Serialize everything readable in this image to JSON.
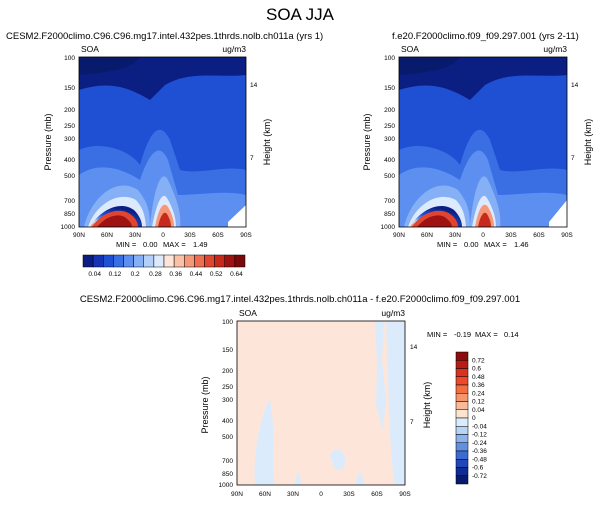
{
  "page_title": "SOA JJA",
  "chart_data": [
    {
      "type": "contour",
      "panel": "top-left",
      "title": "CESM2.F2000climo.C96.C96.mg17.intel.432pes.1thrds.nolb.ch011a (yrs 1)",
      "variable": "SOA",
      "units": "ug/m3",
      "ylabel": "Pressure (mb)",
      "ylabel_right": "Height (km)",
      "x_ticks": [
        "90N",
        "60N",
        "30N",
        "0",
        "30S",
        "60S",
        "90S"
      ],
      "y_ticks": [
        "100",
        "150",
        "200",
        "250",
        "300",
        "400",
        "500",
        "700",
        "850",
        "1000"
      ],
      "y_ticks_right": [
        "14",
        "7"
      ],
      "ylim": [
        1000,
        100
      ],
      "min_label": "MIN = ",
      "min": "0.00",
      "max_label": "MAX = ",
      "max": "1.49"
    },
    {
      "type": "contour",
      "panel": "top-right",
      "title": "f.e20.F2000climo.f09_f09.297.001 (yrs 2-11)",
      "variable": "SOA",
      "units": "ug/m3",
      "ylabel": "Pressure (mb)",
      "ylabel_right": "Height (km)",
      "x_ticks": [
        "90N",
        "60N",
        "30N",
        "0",
        "30S",
        "60S",
        "90S"
      ],
      "y_ticks": [
        "100",
        "150",
        "200",
        "250",
        "300",
        "400",
        "500",
        "700",
        "850",
        "1000"
      ],
      "y_ticks_right": [
        "14",
        "7"
      ],
      "ylim": [
        1000,
        100
      ],
      "min_label": "MIN = ",
      "min": "0.00",
      "max_label": "MAX = ",
      "max": "1.46"
    },
    {
      "type": "contour",
      "panel": "bottom-difference",
      "title": "CESM2.F2000climo.C96.C96.mg17.intel.432pes.1thrds.nolb.ch011a - f.e20.F2000climo.f09_f09.297.001",
      "variable": "SOA",
      "units": "ug/m3",
      "ylabel": "Pressure (mb)",
      "ylabel_right": "Height (km)",
      "x_ticks": [
        "90N",
        "60N",
        "30N",
        "0",
        "30S",
        "60S",
        "90S"
      ],
      "y_ticks": [
        "100",
        "150",
        "200",
        "250",
        "300",
        "400",
        "500",
        "700",
        "850",
        "1000"
      ],
      "y_ticks_right": [
        "14",
        "7"
      ],
      "ylim": [
        1000,
        100
      ],
      "min_label": "MIN = ",
      "min": "-0.19",
      "max_label": "MAX = ",
      "max": "0.14"
    }
  ],
  "colorbar_top": {
    "orientation": "horizontal",
    "labels": [
      "0.04",
      "0.12",
      "0.2",
      "0.28",
      "0.36",
      "0.44",
      "0.52",
      "0.64"
    ],
    "colors": [
      "#0b1e82",
      "#1633b5",
      "#1f4fd2",
      "#3a6fe4",
      "#5c8fef",
      "#86b0f5",
      "#b3d0fb",
      "#dde9fd",
      "#fde6d9",
      "#f9c2a7",
      "#f5987a",
      "#ee6e50",
      "#e04530",
      "#c52a1d",
      "#9e1212",
      "#7a0a0a"
    ]
  },
  "colorbar_bottom": {
    "orientation": "vertical",
    "labels": [
      "0.72",
      "0.6",
      "0.48",
      "0.36",
      "0.24",
      "0.12",
      "0.04",
      "0",
      "-0.04",
      "-0.12",
      "-0.24",
      "-0.36",
      "-0.48",
      "-0.6",
      "-0.72"
    ],
    "colors": [
      "#8b0d0d",
      "#b81c17",
      "#d9331f",
      "#ec4a2a",
      "#f2703f",
      "#f6966a",
      "#f9bb97",
      "#fde4cf",
      "#dcebfb",
      "#b7d3f6",
      "#8db3ee",
      "#618fe1",
      "#3b6ad2",
      "#2048b8",
      "#0f2b94",
      "#081a6c"
    ]
  }
}
